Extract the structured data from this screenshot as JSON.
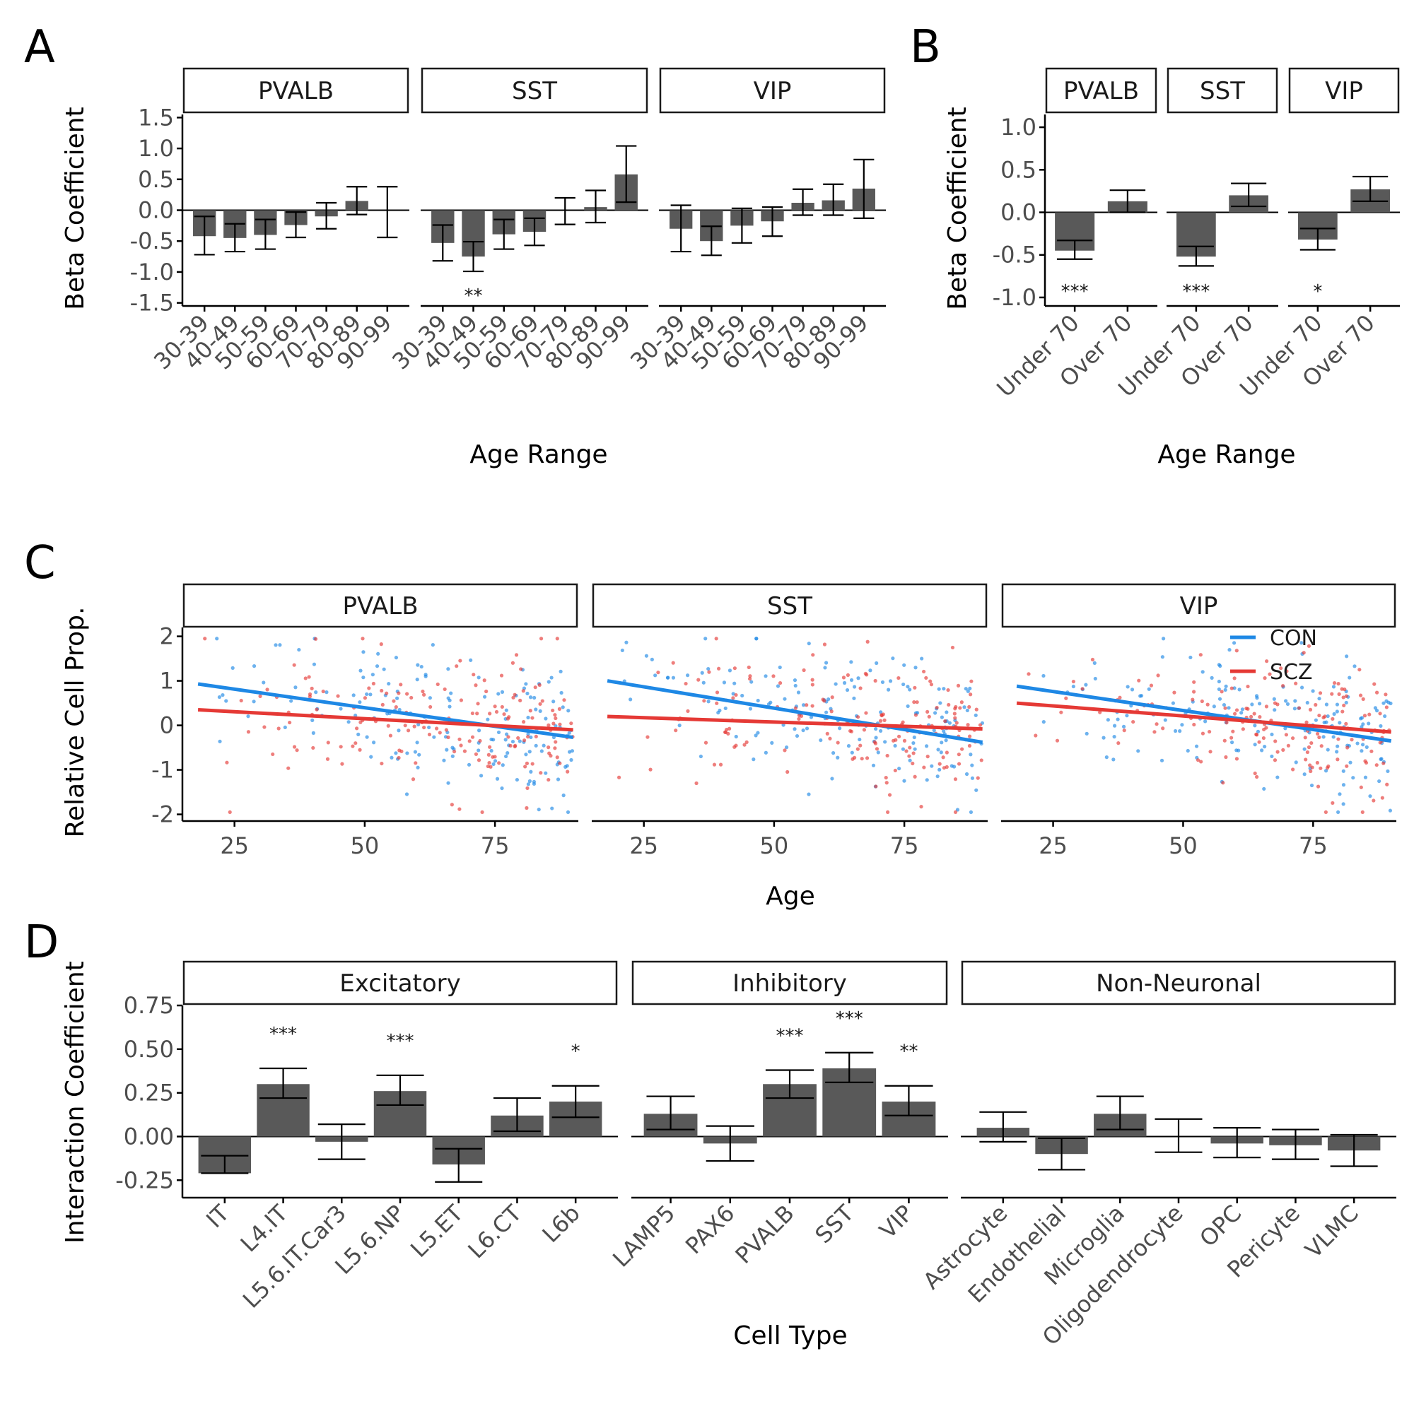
{
  "colors": {
    "bar": "#595959",
    "con": "#1e88e5",
    "scz": "#e53935",
    "axis": "#000000",
    "tick_text": "#4d4d4d"
  },
  "panels": {
    "A": {
      "letter": "A",
      "xlabel": "Age Range",
      "ylabel": "Beta Coefficient"
    },
    "B": {
      "letter": "B",
      "xlabel": "Age Range",
      "ylabel": "Beta Coefficient"
    },
    "C": {
      "letter": "C",
      "xlabel": "Age",
      "ylabel": "Relative Cell Prop."
    },
    "D": {
      "letter": "D",
      "xlabel": "Cell Type",
      "ylabel": "Interaction Coefficient"
    }
  },
  "chart_data": [
    {
      "id": "A",
      "type": "bar",
      "xlabel": "Age Range",
      "ylabel": "Beta Coefficient",
      "ylim": [
        -1.55,
        1.55
      ],
      "yticks": [
        -1.5,
        -1.0,
        -0.5,
        0.0,
        0.5,
        1.0,
        1.5
      ],
      "ytick_labels": [
        "-1.5",
        "-1.0",
        "-0.5",
        "0.0",
        "0.5",
        "1.0",
        "1.5"
      ],
      "categories": [
        "30-39",
        "40-49",
        "50-59",
        "60-69",
        "70-79",
        "80-89",
        "90-99"
      ],
      "facets": [
        {
          "name": "PVALB",
          "values": [
            -0.42,
            -0.45,
            -0.4,
            -0.24,
            -0.1,
            0.15,
            0.0
          ],
          "lower": [
            -0.72,
            -0.67,
            -0.63,
            -0.44,
            -0.3,
            -0.07,
            -0.44
          ],
          "upper": [
            -0.1,
            -0.22,
            -0.15,
            -0.03,
            0.12,
            0.38,
            0.38
          ],
          "sig": [
            "",
            "",
            "",
            "",
            "",
            "",
            ""
          ]
        },
        {
          "name": "SST",
          "values": [
            -0.53,
            -0.75,
            -0.39,
            -0.35,
            0.0,
            0.05,
            0.58
          ],
          "lower": [
            -0.82,
            -0.99,
            -0.63,
            -0.57,
            -0.23,
            -0.2,
            0.13
          ],
          "upper": [
            -0.24,
            -0.51,
            -0.15,
            -0.13,
            0.2,
            0.32,
            1.04
          ],
          "sig": [
            "",
            "**",
            "",
            "",
            "",
            "",
            ""
          ]
        },
        {
          "name": "VIP",
          "values": [
            -0.3,
            -0.5,
            -0.25,
            -0.18,
            0.12,
            0.16,
            0.35
          ],
          "lower": [
            -0.67,
            -0.73,
            -0.53,
            -0.42,
            -0.08,
            -0.08,
            -0.13
          ],
          "upper": [
            0.08,
            -0.26,
            0.03,
            0.05,
            0.34,
            0.42,
            0.82
          ],
          "sig": [
            "",
            "",
            "",
            "",
            "",
            "",
            ""
          ]
        }
      ]
    },
    {
      "id": "B",
      "type": "bar",
      "xlabel": "Age Range",
      "ylabel": "Beta Coefficient",
      "ylim": [
        -1.1,
        1.15
      ],
      "yticks": [
        -1.0,
        -0.5,
        0.0,
        0.5,
        1.0
      ],
      "ytick_labels": [
        "-1.0",
        "-0.5",
        "0.0",
        "0.5",
        "1.0"
      ],
      "categories": [
        "Under 70",
        "Over 70"
      ],
      "facets": [
        {
          "name": "PVALB",
          "values": [
            -0.45,
            0.13
          ],
          "lower": [
            -0.55,
            0.0
          ],
          "upper": [
            -0.33,
            0.26
          ],
          "sig": [
            "***",
            ""
          ]
        },
        {
          "name": "SST",
          "values": [
            -0.52,
            0.2
          ],
          "lower": [
            -0.63,
            0.07
          ],
          "upper": [
            -0.4,
            0.34
          ],
          "sig": [
            "***",
            ""
          ]
        },
        {
          "name": "VIP",
          "values": [
            -0.32,
            0.27
          ],
          "lower": [
            -0.44,
            0.13
          ],
          "upper": [
            -0.19,
            0.42
          ],
          "sig": [
            "*",
            ""
          ]
        }
      ]
    },
    {
      "id": "C",
      "type": "scatter",
      "xlabel": "Age",
      "ylabel": "Relative Cell Prop.",
      "xlim": [
        15,
        91
      ],
      "ylim": [
        -2.15,
        2.2
      ],
      "xticks": [
        25,
        50,
        75
      ],
      "xtick_labels": [
        "25",
        "50",
        "75"
      ],
      "yticks": [
        -2,
        -1,
        0,
        1,
        2
      ],
      "ytick_labels": [
        "-2",
        "-1",
        "0",
        "1",
        "2"
      ],
      "legend": {
        "position": "top-right",
        "entries": [
          {
            "name": "CON"
          },
          {
            "name": "SCZ"
          }
        ]
      },
      "facets": [
        {
          "name": "PVALB",
          "fits": [
            {
              "series": "CON",
              "x": [
                18,
                90
              ],
              "y": [
                0.93,
                -0.27
              ]
            },
            {
              "series": "SCZ",
              "x": [
                18,
                90
              ],
              "y": [
                0.35,
                -0.1
              ]
            }
          ]
        },
        {
          "name": "SST",
          "fits": [
            {
              "series": "CON",
              "x": [
                18,
                90
              ],
              "y": [
                1.0,
                -0.38
              ]
            },
            {
              "series": "SCZ",
              "x": [
                18,
                90
              ],
              "y": [
                0.2,
                -0.08
              ]
            }
          ]
        },
        {
          "name": "VIP",
          "fits": [
            {
              "series": "CON",
              "x": [
                18,
                90
              ],
              "y": [
                0.88,
                -0.35
              ]
            },
            {
              "series": "SCZ",
              "x": [
                18,
                90
              ],
              "y": [
                0.5,
                -0.15
              ]
            }
          ]
        }
      ]
    },
    {
      "id": "D",
      "type": "bar",
      "xlabel": "Cell Type",
      "ylabel": "Interaction Coefficient",
      "ylim": [
        -0.35,
        0.75
      ],
      "yticks": [
        -0.25,
        0.0,
        0.25,
        0.5,
        0.75
      ],
      "ytick_labels": [
        "-0.25",
        "0.00",
        "0.25",
        "0.50",
        "0.75"
      ],
      "facets": [
        {
          "name": "Excitatory",
          "categories": [
            "IT",
            "L4.IT",
            "L5.6.IT.Car3",
            "L5.6.NP",
            "L5.ET",
            "L6.CT",
            "L6b"
          ],
          "values": [
            -0.21,
            0.3,
            -0.03,
            0.26,
            -0.16,
            0.12,
            0.2
          ],
          "lower": [
            -0.21,
            0.22,
            -0.13,
            0.18,
            -0.26,
            0.03,
            0.11
          ],
          "upper": [
            -0.11,
            0.39,
            0.07,
            0.35,
            -0.07,
            0.22,
            0.29
          ],
          "sig": [
            "",
            "***",
            "",
            "***",
            "",
            "",
            "*"
          ]
        },
        {
          "name": "Inhibitory",
          "categories": [
            "LAMP5",
            "PAX6",
            "PVALB",
            "SST",
            "VIP"
          ],
          "values": [
            0.13,
            -0.04,
            0.3,
            0.39,
            0.2
          ],
          "lower": [
            0.04,
            -0.14,
            0.22,
            0.31,
            0.12
          ],
          "upper": [
            0.23,
            0.06,
            0.38,
            0.48,
            0.29
          ],
          "sig": [
            "",
            "",
            "***",
            "***",
            "**"
          ]
        },
        {
          "name": "Non-Neuronal",
          "categories": [
            "Astrocyte",
            "Endothelial",
            "Microglia",
            "Oligodendrocyte",
            "OPC",
            "Pericyte",
            "VLMC"
          ],
          "values": [
            0.05,
            -0.1,
            0.13,
            0.0,
            -0.04,
            -0.05,
            -0.08
          ],
          "lower": [
            -0.03,
            -0.19,
            0.04,
            -0.09,
            -0.12,
            -0.13,
            -0.17
          ],
          "upper": [
            0.14,
            -0.01,
            0.23,
            0.1,
            0.05,
            0.04,
            0.01
          ],
          "sig": [
            "",
            "",
            "",
            "",
            "",
            "",
            ""
          ]
        }
      ]
    }
  ]
}
